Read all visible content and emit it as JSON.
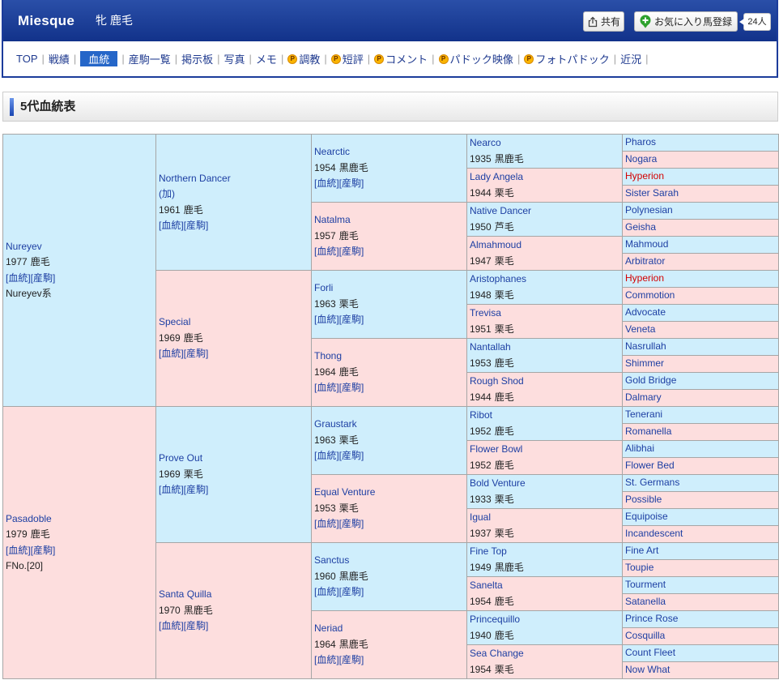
{
  "header": {
    "horse_name": "Miesque",
    "horse_sex_coat": "牝 鹿毛",
    "share_label": "共有",
    "favorite_label": "お気に入り馬登録",
    "favorite_count": "24人"
  },
  "nav": {
    "separator": "|",
    "premium_icon_letter": "P",
    "items": [
      {
        "label": "TOP"
      },
      {
        "label": "戦績"
      },
      {
        "label": "血統",
        "active": true
      },
      {
        "label": "産駒一覧"
      },
      {
        "label": "掲示板"
      },
      {
        "label": "写真"
      },
      {
        "label": "メモ"
      },
      {
        "label": "調教",
        "icon": "premium-p-icon"
      },
      {
        "label": "短評",
        "icon": "premium-p-icon"
      },
      {
        "label": "コメント",
        "icon": "premium-p-icon"
      },
      {
        "label": "パドック映像",
        "icon": "premium-p-icon"
      },
      {
        "label": "フォトパドック",
        "icon": "premium-p-icon"
      },
      {
        "label": "近況"
      }
    ]
  },
  "section_title": "5代血統表",
  "pedigree": {
    "link_pedigree": "[血統]",
    "link_offspring": "[産駒]",
    "gen1": [
      {
        "name": "Nureyev",
        "year": "1977",
        "coat": "鹿毛",
        "note": "Nureyev系"
      },
      {
        "name": "Pasadoble",
        "year": "1979",
        "coat": "鹿毛",
        "note": "FNo.[20]"
      }
    ],
    "gen2": [
      {
        "name": "Northern Dancer",
        "origin": "(加)",
        "year": "1961",
        "coat": "鹿毛"
      },
      {
        "name": "Special",
        "year": "1969",
        "coat": "鹿毛"
      },
      {
        "name": "Prove Out",
        "year": "1969",
        "coat": "栗毛"
      },
      {
        "name": "Santa Quilla",
        "year": "1970",
        "coat": "黒鹿毛"
      }
    ],
    "gen3": [
      {
        "name": "Nearctic",
        "year": "1954",
        "coat": "黒鹿毛"
      },
      {
        "name": "Natalma",
        "year": "1957",
        "coat": "鹿毛"
      },
      {
        "name": "Forli",
        "year": "1963",
        "coat": "栗毛"
      },
      {
        "name": "Thong",
        "year": "1964",
        "coat": "鹿毛"
      },
      {
        "name": "Graustark",
        "year": "1963",
        "coat": "栗毛"
      },
      {
        "name": "Equal Venture",
        "year": "1953",
        "coat": "栗毛"
      },
      {
        "name": "Sanctus",
        "year": "1960",
        "coat": "黒鹿毛"
      },
      {
        "name": "Neriad",
        "year": "1964",
        "coat": "黒鹿毛"
      }
    ],
    "gen4": [
      {
        "name": "Nearco",
        "year": "1935",
        "coat": "黒鹿毛"
      },
      {
        "name": "Lady Angela",
        "year": "1944",
        "coat": "栗毛"
      },
      {
        "name": "Native Dancer",
        "year": "1950",
        "coat": "芦毛"
      },
      {
        "name": "Almahmoud",
        "year": "1947",
        "coat": "栗毛"
      },
      {
        "name": "Aristophanes",
        "year": "1948",
        "coat": "栗毛"
      },
      {
        "name": "Trevisa",
        "year": "1951",
        "coat": "栗毛"
      },
      {
        "name": "Nantallah",
        "year": "1953",
        "coat": "鹿毛"
      },
      {
        "name": "Rough Shod",
        "year": "1944",
        "coat": "鹿毛"
      },
      {
        "name": "Ribot",
        "year": "1952",
        "coat": "鹿毛"
      },
      {
        "name": "Flower Bowl",
        "year": "1952",
        "coat": "鹿毛"
      },
      {
        "name": "Bold Venture",
        "year": "1933",
        "coat": "栗毛"
      },
      {
        "name": "Igual",
        "year": "1937",
        "coat": "栗毛"
      },
      {
        "name": "Fine Top",
        "year": "1949",
        "coat": "黒鹿毛"
      },
      {
        "name": "Sanelta",
        "year": "1954",
        "coat": "鹿毛"
      },
      {
        "name": "Princequillo",
        "year": "1940",
        "coat": "鹿毛"
      },
      {
        "name": "Sea Change",
        "year": "1954",
        "coat": "栗毛"
      }
    ],
    "gen5": [
      {
        "name": "Pharos"
      },
      {
        "name": "Nogara"
      },
      {
        "name": "Hyperion",
        "highlight": true
      },
      {
        "name": "Sister Sarah"
      },
      {
        "name": "Polynesian"
      },
      {
        "name": "Geisha"
      },
      {
        "name": "Mahmoud"
      },
      {
        "name": "Arbitrator"
      },
      {
        "name": "Hyperion",
        "highlight": true
      },
      {
        "name": "Commotion"
      },
      {
        "name": "Advocate"
      },
      {
        "name": "Veneta"
      },
      {
        "name": "Nasrullah"
      },
      {
        "name": "Shimmer"
      },
      {
        "name": "Gold Bridge"
      },
      {
        "name": "Dalmary"
      },
      {
        "name": "Tenerani"
      },
      {
        "name": "Romanella"
      },
      {
        "name": "Alibhai"
      },
      {
        "name": "Flower Bed"
      },
      {
        "name": "St. Germans"
      },
      {
        "name": "Possible"
      },
      {
        "name": "Equipoise"
      },
      {
        "name": "Incandescent"
      },
      {
        "name": "Fine Art"
      },
      {
        "name": "Toupie"
      },
      {
        "name": "Tourment"
      },
      {
        "name": "Satanella"
      },
      {
        "name": "Prince Rose"
      },
      {
        "name": "Cosquilla"
      },
      {
        "name": "Count Fleet"
      },
      {
        "name": "Now What"
      }
    ]
  },
  "colors": {
    "header_bg": "#12328a",
    "frame_border": "#1c3c9b",
    "nav_text": "#1f3a8f",
    "nav_active_bg": "#2566c8",
    "premium_icon_bg": "#fab400",
    "favorite_icon": "#2ea12e",
    "link_text": "#1d3fa3",
    "highlight_name": "#d40000",
    "sire_bg": "#cfeefc",
    "dam_bg": "#fddede",
    "grid_border": "#a6a6a6"
  }
}
